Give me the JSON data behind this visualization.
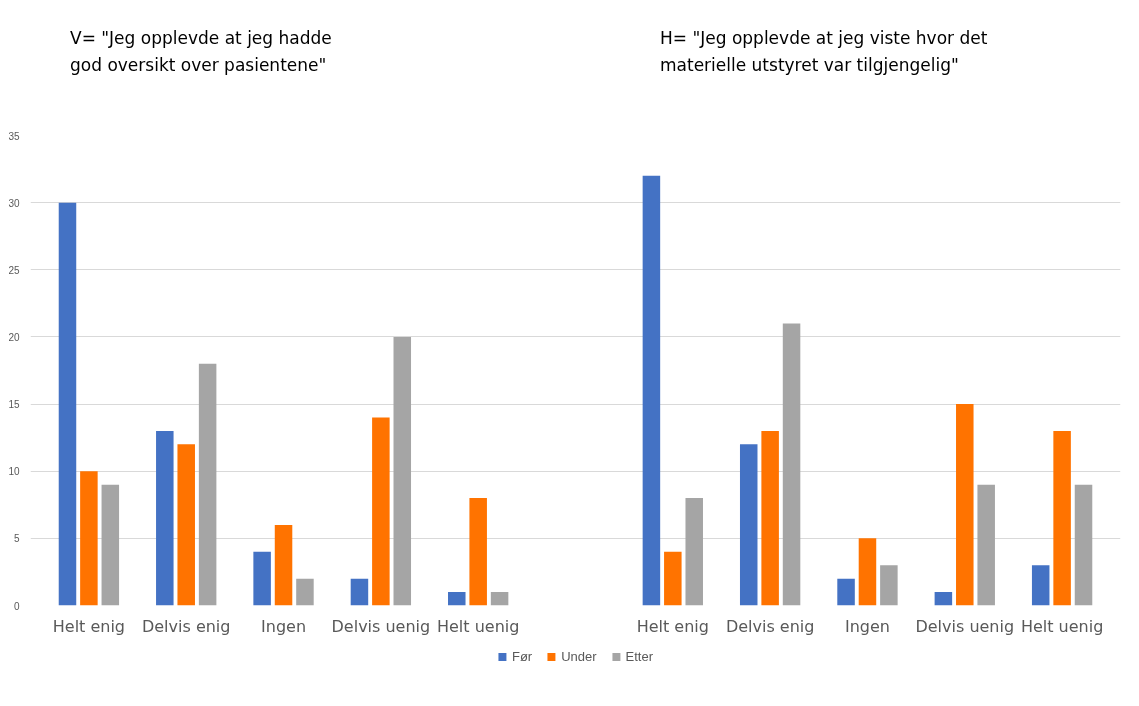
{
  "chart_data": {
    "type": "bar",
    "categories": [
      "Helt enig",
      "Delvis enig",
      "Ingen",
      "Delvis uenig",
      "Helt uenig",
      null,
      "Helt enig",
      "Delvis enig",
      "Ingen",
      "Delvis uenig",
      "Helt uenig"
    ],
    "series": [
      {
        "name": "Før",
        "color": "#4472c4",
        "values": [
          30,
          13,
          4,
          2,
          1,
          null,
          32,
          12,
          2,
          1,
          3
        ]
      },
      {
        "name": "Under",
        "color": "#ff7300",
        "values": [
          10,
          12,
          6,
          14,
          8,
          null,
          4,
          13,
          5,
          15,
          13
        ]
      },
      {
        "name": "Etter",
        "color": "#a5a5a5",
        "values": [
          9,
          18,
          2,
          20,
          1,
          null,
          8,
          21,
          3,
          9,
          9
        ]
      }
    ],
    "ylim": [
      0,
      35
    ],
    "yticks": [
      0,
      5,
      10,
      15,
      20,
      25,
      30,
      35
    ],
    "grid": "y",
    "legend": "bottom",
    "annotations": [
      "V= \"Jeg opplevde at jeg hadde\ngod oversikt over pasientene\"",
      "H= \"Jeg opplevde at jeg viste hvor det\nmaterielle utstyret var tilgjengelig\""
    ]
  }
}
